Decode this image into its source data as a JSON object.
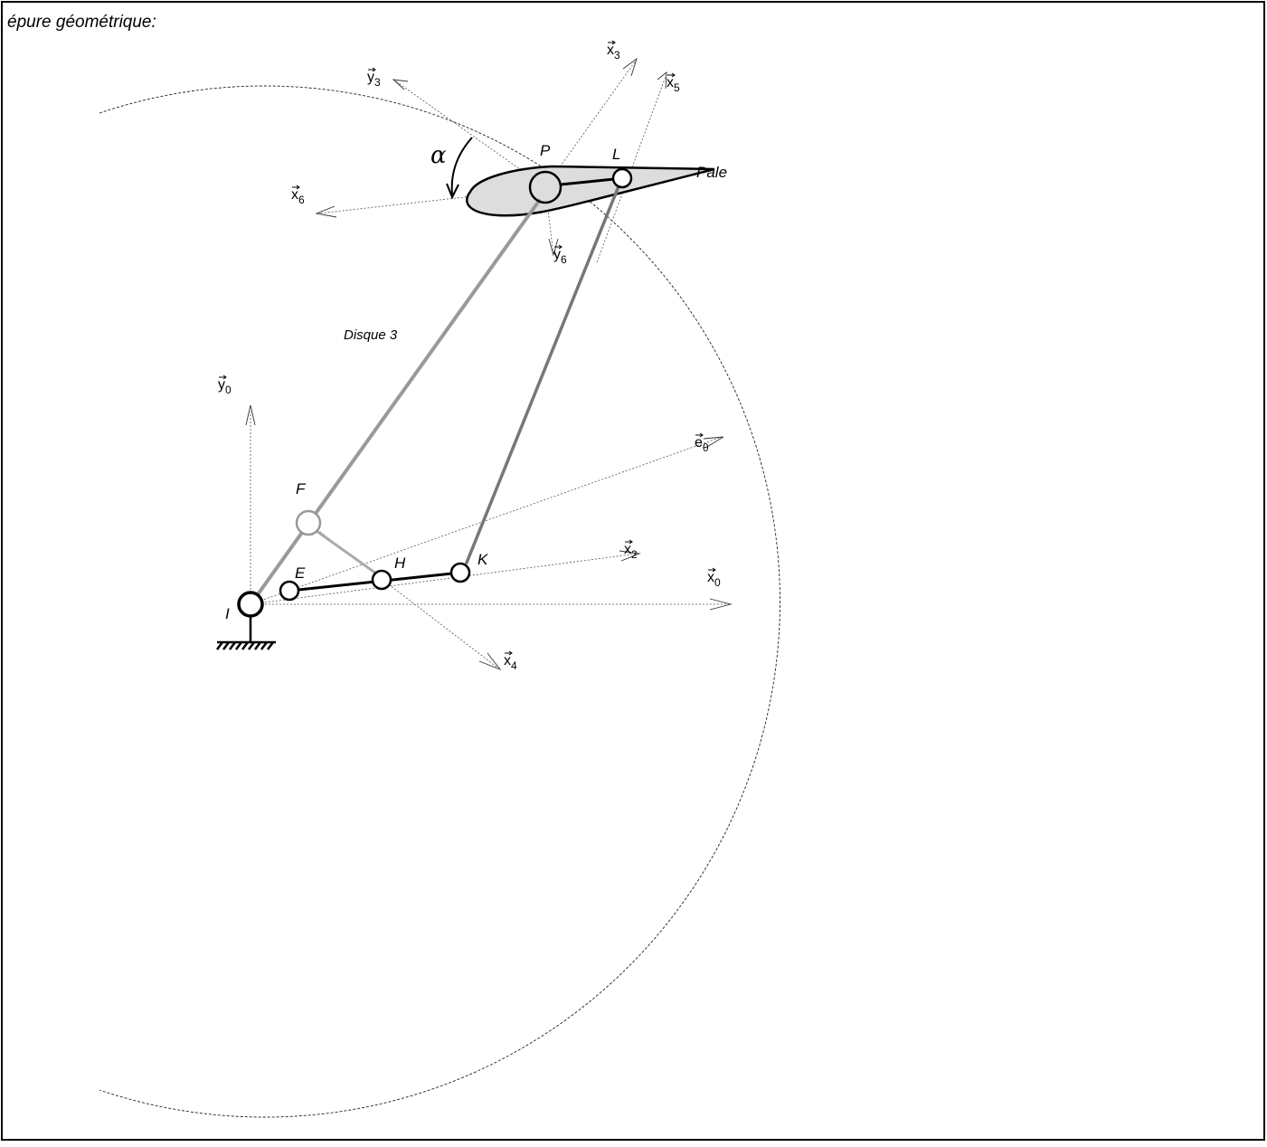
{
  "title": "épure géométrique:",
  "points": {
    "P": "P",
    "L": "L",
    "F": "F",
    "E": "E",
    "H": "H",
    "K": "K",
    "I": "I"
  },
  "labels": {
    "pale": "Pale",
    "disque": "Disque 3",
    "alpha": "α"
  },
  "vectors": [
    {
      "base": "x",
      "sub": "3"
    },
    {
      "base": "y",
      "sub": "3"
    },
    {
      "base": "x",
      "sub": "5"
    },
    {
      "base": "x",
      "sub": "6"
    },
    {
      "base": "y",
      "sub": "6"
    },
    {
      "base": "y",
      "sub": "0"
    },
    {
      "base": "e",
      "sub": "θ"
    },
    {
      "base": "x",
      "sub": "2"
    },
    {
      "base": "x",
      "sub": "0"
    },
    {
      "base": "x",
      "sub": "4"
    }
  ]
}
